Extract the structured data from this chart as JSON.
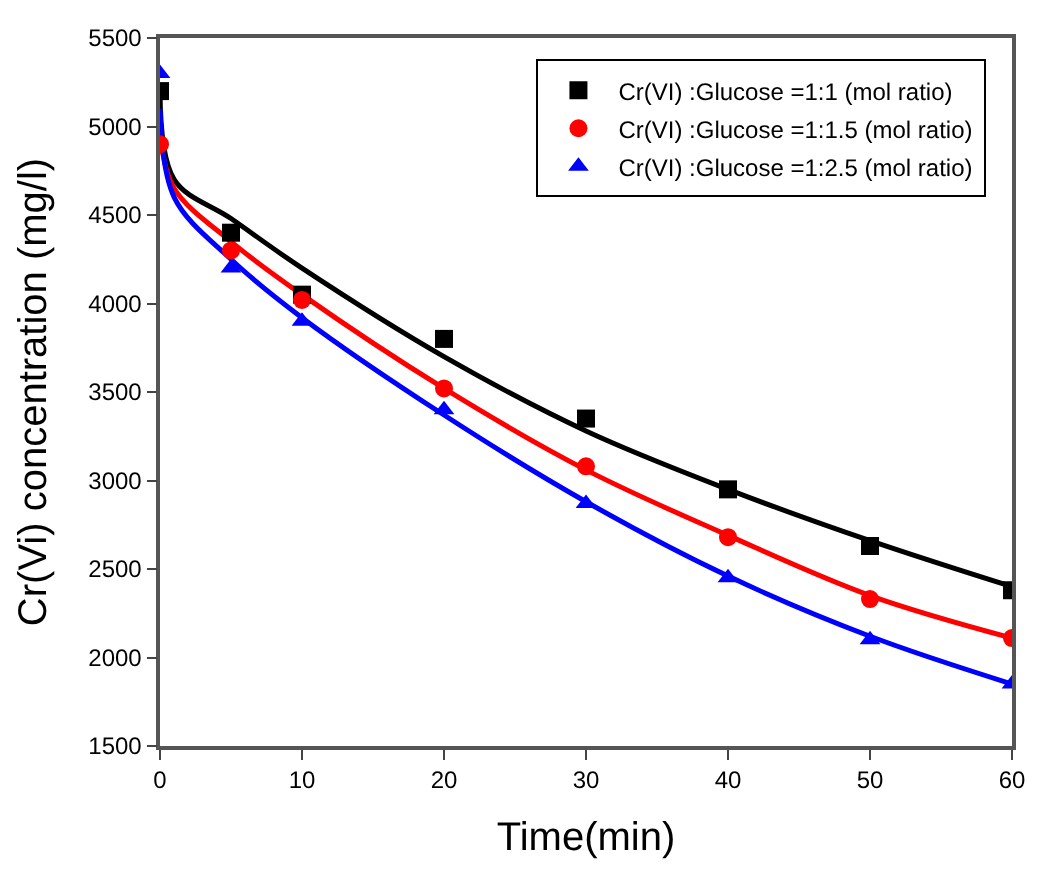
{
  "chart_data": {
    "type": "scatter",
    "xlabel": "Time(min)",
    "ylabel": "Cr(Vi) concentration (mg/l)",
    "xlim": [
      0,
      60
    ],
    "xticks": [
      0,
      10,
      20,
      30,
      40,
      50,
      60
    ],
    "ylim": [
      1500,
      5500
    ],
    "yticks": [
      1500,
      2000,
      2500,
      3000,
      3500,
      4000,
      4500,
      5000,
      5500
    ],
    "grid": false,
    "legend": "top right",
    "series": [
      {
        "name": "Cr(VI) :Glucose =1:1 (mol ratio)",
        "color": "#000000",
        "marker": "square",
        "x": [
          0,
          5,
          10,
          20,
          30,
          40,
          50,
          60
        ],
        "values": [
          5200,
          4400,
          4050,
          3800,
          3350,
          2950,
          2630,
          2380
        ]
      },
      {
        "name": "Cr(VI) :Glucose =1:1.5 (mol ratio)",
        "color": "#ff0000",
        "marker": "circle",
        "x": [
          0,
          5,
          10,
          20,
          30,
          40,
          50,
          60
        ],
        "values": [
          4900,
          4300,
          4020,
          3520,
          3080,
          2680,
          2330,
          2110
        ]
      },
      {
        "name": "Cr(VI) :Glucose =1:2.5 (mol ratio)",
        "color": "#0000ff",
        "marker": "triangle",
        "x": [
          0,
          5,
          10,
          20,
          30,
          40,
          50,
          60
        ],
        "values": [
          5300,
          4200,
          3900,
          3400,
          2870,
          2450,
          2100,
          1850
        ]
      },
      {
        "type": "line",
        "color": "#000000",
        "marker": "none",
        "x": [
          0,
          1,
          5,
          10,
          20,
          30,
          40,
          50,
          60
        ],
        "values": [
          5200,
          4700,
          4480,
          4200,
          3700,
          3280,
          2950,
          2660,
          2400
        ]
      },
      {
        "type": "line",
        "color": "#ff0000",
        "marker": "none",
        "x": [
          0,
          1,
          5,
          10,
          20,
          30,
          40,
          50,
          60
        ],
        "values": [
          4950,
          4650,
          4350,
          4050,
          3520,
          3060,
          2690,
          2350,
          2110
        ]
      },
      {
        "type": "line",
        "color": "#0000ff",
        "marker": "none",
        "x": [
          0,
          1,
          5,
          10,
          20,
          30,
          40,
          50,
          60
        ],
        "values": [
          5100,
          4600,
          4250,
          3920,
          3370,
          2880,
          2460,
          2120,
          1850
        ]
      }
    ]
  }
}
